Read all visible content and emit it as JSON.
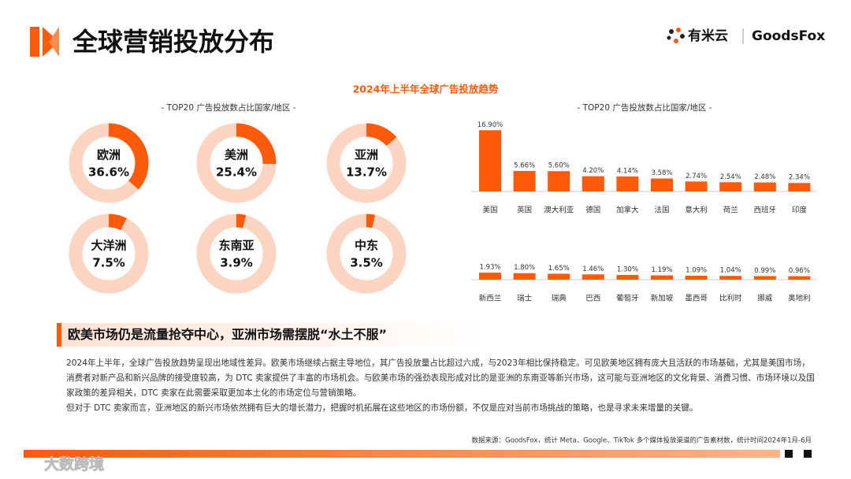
{
  "header": {
    "title": "全球营销投放分布",
    "logos": [
      "有米云",
      "GoodsFox"
    ]
  },
  "charts_title": "2024年上半年全球广告投放趋势",
  "chart_data": [
    {
      "type": "donut",
      "subtitle": "- TOP20 广告投放数占比国家/地区 -",
      "categories": [
        "欧洲",
        "美洲",
        "亚洲",
        "大洋洲",
        "东南亚",
        "中东"
      ],
      "values": [
        36.6,
        25.4,
        13.7,
        7.5,
        3.9,
        3.5
      ],
      "value_labels": [
        "36.6%",
        "25.4%",
        "13.7%",
        "7.5%",
        "3.9%",
        "3.5%"
      ],
      "color": "#ff5a0a",
      "track_color": "#fcd5c2"
    },
    {
      "type": "bar",
      "subtitle": "- TOP20 广告投放数占比国家/地区 -",
      "categories": [
        "美国",
        "英国",
        "澳大利亚",
        "德国",
        "加拿大",
        "法国",
        "意大利",
        "荷兰",
        "西班牙",
        "印度",
        "新西兰",
        "瑞士",
        "瑞典",
        "巴西",
        "葡萄牙",
        "新加坡",
        "墨西哥",
        "比利时",
        "挪威",
        "奥地利"
      ],
      "values": [
        16.9,
        5.66,
        5.6,
        4.2,
        4.14,
        3.58,
        2.74,
        2.54,
        2.48,
        2.34,
        1.93,
        1.8,
        1.65,
        1.46,
        1.3,
        1.19,
        1.09,
        1.04,
        0.99,
        0.96
      ],
      "value_labels": [
        "16.90%",
        "5.66%",
        "5.60%",
        "4.20%",
        "4.14%",
        "3.58%",
        "2.74%",
        "2.54%",
        "2.48%",
        "2.34%",
        "1.93%",
        "1.80%",
        "1.65%",
        "1.46%",
        "1.30%",
        "1.19%",
        "1.09%",
        "1.04%",
        "0.99%",
        "0.96%"
      ],
      "color": "#ff5a0a"
    }
  ],
  "highlight": "欧美市场仍是流量抢夺中心，亚洲市场需摆脱“水土不服”",
  "body": [
    "2024年上半年，全球广告投放趋势呈现出地域性差异。欧美市场继续占据主导地位，其广告投放量占比超过六成，与2023年相比保持稳定。可见欧美地区拥有庞大且活跃的市场基础，尤其是美国市场，消费者对新产品和新兴品牌的接受度较高，为 DTC 卖家提供了丰富的市场机会。与欧美市场的强劲表现形成对比的是亚洲的东南亚等新兴市场，这可能与亚洲地区的文化背景、消费习惯、市场环境以及国家政策的差异相关，DTC 卖家在此需要采取更加本土化的市场定位与营销策略。",
    "但对于 DTC 卖家而言，亚洲地区的新兴市场依然拥有巨大的增长潜力，把握时机拓展在这些地区的市场份额，不仅是应对当前市场挑战的策略，也是寻求未来增量的关键。"
  ],
  "source": "数据来源：GoodsFox，统计 Meta、Google、TikTok 多个媒体投放渠道的广告素材数，统计时间2024年1月-6月",
  "watermark": "大数跨境"
}
